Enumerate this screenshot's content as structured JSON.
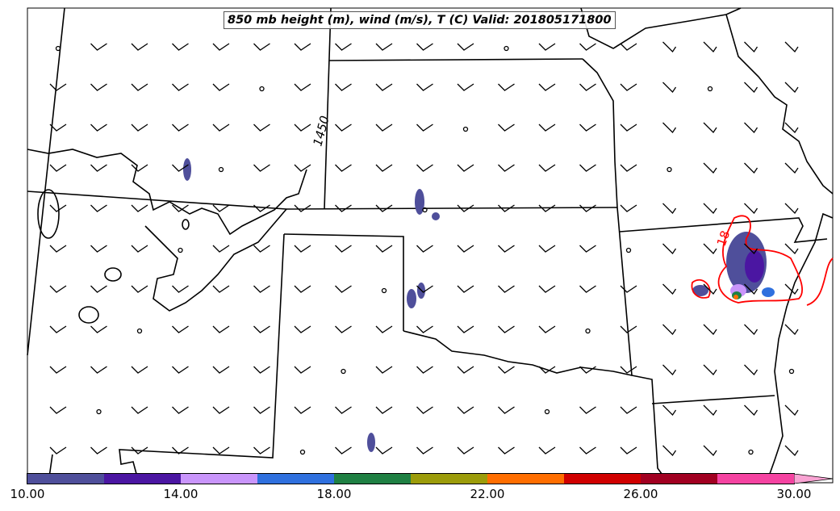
{
  "title": "850 mb height (m), wind (m/s), T (C) Valid: 201805171800",
  "contour_labels": {
    "height": "1450",
    "temperature": "18"
  },
  "colorbar": {
    "colors": [
      "#4f4f9b",
      "#4b16a2",
      "#c995fb",
      "#2f70de",
      "#1f8043",
      "#9c9c0a",
      "#ff6e00",
      "#d00000",
      "#a10021",
      "#f543a1"
    ],
    "extend_color": "#f9a3d3",
    "ticks": [
      "10.00",
      "14.00",
      "18.00",
      "22.00",
      "26.00",
      "30.00"
    ],
    "range": [
      10,
      31
    ]
  },
  "accent": {
    "temperature_contour": "#ff0000",
    "border": "#000000"
  }
}
